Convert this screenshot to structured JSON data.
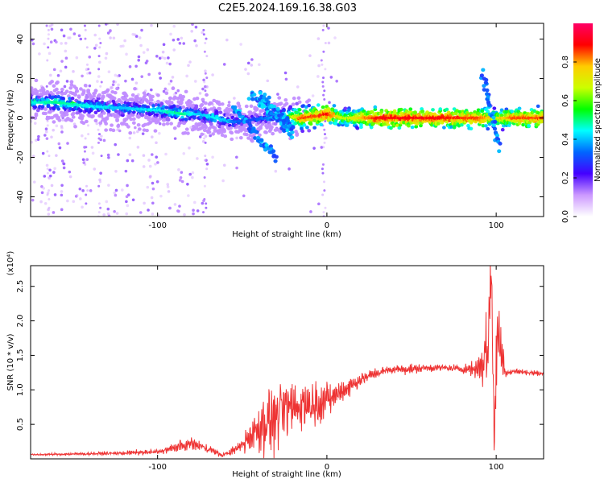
{
  "figure_title": "C2E5.2024.169.16.38.G03",
  "chart_data": [
    {
      "type": "heatmap",
      "title": "C2E5.2024.169.16.38.G03",
      "xlabel": "Height of straight line (km)",
      "ylabel": "Frequency (Hz)",
      "xlim": [
        -175,
        128
      ],
      "ylim": [
        -50,
        48
      ],
      "x_ticks": [
        -100,
        0,
        100
      ],
      "x_tick_labels": [
        "-100",
        "0",
        "100"
      ],
      "y_ticks": [
        -40,
        -20,
        0,
        20,
        40
      ],
      "y_tick_labels": [
        "-40",
        "-20",
        "0",
        "20",
        "40"
      ],
      "grid": false,
      "colorbar": {
        "label": "Normalized spectral amplitude",
        "range": [
          0,
          1
        ],
        "ticks": [
          0.0,
          0.2,
          0.4,
          0.6,
          0.8
        ],
        "tick_labels": [
          "0.0",
          "0.2",
          "0.4",
          "0.6",
          "0.8"
        ],
        "colormap": [
          "#ffffff",
          "#cc99ff",
          "#4400ff",
          "#0066ff",
          "#00ffff",
          "#00ff00",
          "#ccff00",
          "#ffcc00",
          "#ff0000",
          "#ff0066"
        ]
      },
      "ridge": {
        "x": [
          -175,
          -160,
          -140,
          -120,
          -100,
          -85,
          -75,
          -65,
          -55,
          -45,
          -35,
          -25,
          -15,
          -5,
          0,
          10,
          30,
          60,
          90,
          100,
          110,
          128
        ],
        "y": [
          8,
          8,
          6,
          5,
          4,
          2,
          2,
          0,
          -2,
          -1,
          0,
          1,
          0,
          1,
          2,
          0,
          0,
          0,
          0,
          0,
          0,
          0
        ],
        "amplitude": [
          0.45,
          0.5,
          0.45,
          0.4,
          0.45,
          0.5,
          0.4,
          0.45,
          0.35,
          0.3,
          0.35,
          0.5,
          0.85,
          0.85,
          0.9,
          0.65,
          0.9,
          0.9,
          0.85,
          0.7,
          0.85,
          0.85
        ]
      },
      "features": [
        {
          "type": "streak",
          "x": [
            -55,
            -30
          ],
          "y": [
            5,
            -20
          ]
        },
        {
          "type": "streak",
          "x": [
            -45,
            -20
          ],
          "y": [
            12,
            -8
          ]
        },
        {
          "type": "streak",
          "x": [
            -40,
            -20
          ],
          "y": [
            12,
            -5
          ]
        },
        {
          "type": "spike",
          "x": [
            92,
            102
          ],
          "y": [
            22,
            -15
          ]
        }
      ]
    },
    {
      "type": "line",
      "xlabel": "Height of straight line (km)",
      "ylabel": "SNR (10 * v/v)",
      "y_multiplier": "(x10⁴)",
      "xlim": [
        -175,
        128
      ],
      "ylim": [
        0,
        2.8
      ],
      "x_ticks": [
        -100,
        0,
        100
      ],
      "x_tick_labels": [
        "-100",
        "0",
        "100"
      ],
      "y_ticks": [
        0.5,
        1.0,
        1.5,
        2.0,
        2.5
      ],
      "y_tick_labels": [
        "0.5",
        "1.0",
        "1.5",
        "2.0",
        "2.5"
      ],
      "color": "#ee3333",
      "grid": false,
      "series": [
        {
          "x": [
            -175,
            -150,
            -125,
            -100,
            -90,
            -80,
            -70,
            -62,
            -55,
            -50,
            -45,
            -40,
            -35,
            -30,
            -25,
            -20,
            -15,
            -10,
            -5,
            0,
            5,
            10,
            20,
            30,
            40,
            50,
            60,
            70,
            80,
            88,
            92,
            95,
            97,
            99,
            101,
            103,
            106,
            110,
            120,
            128
          ],
          "y": [
            0.06,
            0.07,
            0.08,
            0.1,
            0.16,
            0.22,
            0.15,
            0.05,
            0.12,
            0.2,
            0.35,
            0.45,
            0.55,
            0.6,
            0.7,
            0.75,
            0.8,
            0.78,
            0.82,
            0.85,
            0.92,
            1.0,
            1.15,
            1.25,
            1.3,
            1.3,
            1.32,
            1.32,
            1.3,
            1.3,
            1.4,
            1.6,
            2.7,
            0.4,
            2.0,
            1.5,
            1.25,
            1.27,
            1.25,
            1.23
          ],
          "noise": [
            0.01,
            0.015,
            0.02,
            0.03,
            0.05,
            0.08,
            0.05,
            0.02,
            0.05,
            0.1,
            0.2,
            0.3,
            0.35,
            0.35,
            0.4,
            0.35,
            0.3,
            0.25,
            0.25,
            0.2,
            0.15,
            0.12,
            0.08,
            0.06,
            0.05,
            0.05,
            0.04,
            0.04,
            0.04,
            0.1,
            0.3,
            0.6,
            0.5,
            0.5,
            0.6,
            0.3,
            0.05,
            0.03,
            0.03,
            0.03
          ]
        }
      ]
    }
  ]
}
